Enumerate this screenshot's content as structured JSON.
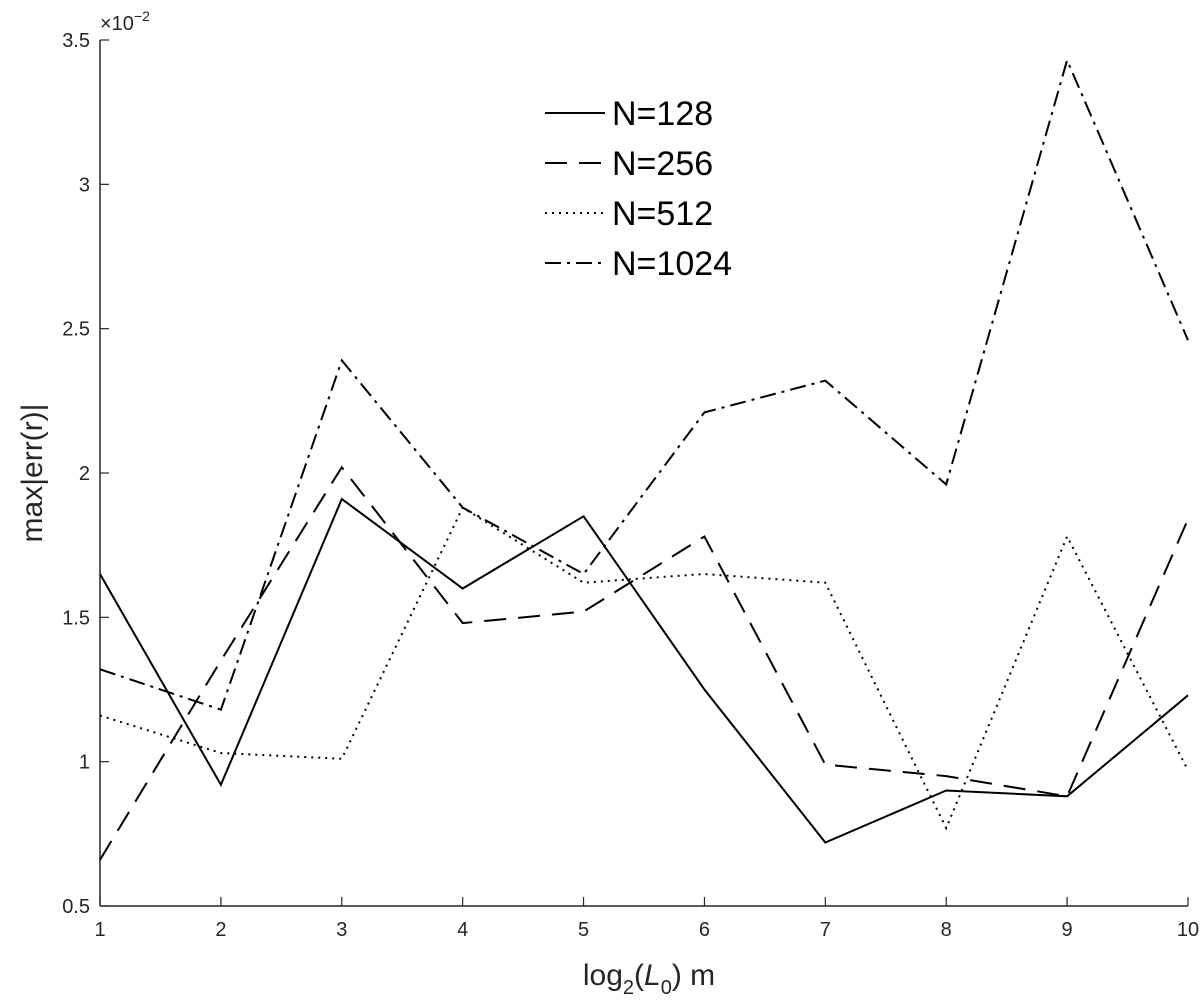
{
  "chart_data": {
    "type": "line",
    "xlabel": {
      "prefix": "log",
      "sub1": "2",
      "mid": "(",
      "italic": "L",
      "sub2": "0",
      "suffix": ") m"
    },
    "ylabel": "max|err(r)|",
    "y_exponent": {
      "base": "×10",
      "power": "−2"
    },
    "x": [
      1,
      2,
      3,
      4,
      5,
      6,
      7,
      8,
      9,
      10
    ],
    "xlim": [
      1,
      10
    ],
    "ylim": [
      0.5,
      3.5
    ],
    "x_ticks": [
      "1",
      "2",
      "3",
      "4",
      "5",
      "6",
      "7",
      "8",
      "9",
      "10"
    ],
    "y_ticks": [
      {
        "value": 0.5,
        "label": "0.5"
      },
      {
        "value": 1.0,
        "label": "1"
      },
      {
        "value": 1.5,
        "label": "1.5"
      },
      {
        "value": 2.0,
        "label": "2"
      },
      {
        "value": 2.5,
        "label": "2.5"
      },
      {
        "value": 3.0,
        "label": "3"
      },
      {
        "value": 3.5,
        "label": "3.5"
      }
    ],
    "grid": false,
    "legend_position": "top-center",
    "series": [
      {
        "name": "N=128",
        "style": "solid",
        "values": [
          1.65,
          0.92,
          1.91,
          1.6,
          1.85,
          1.25,
          0.72,
          0.9,
          0.88,
          1.23
        ]
      },
      {
        "name": "N=256",
        "style": "dashed",
        "values": [
          0.66,
          1.35,
          2.02,
          1.48,
          1.52,
          1.78,
          0.99,
          0.95,
          0.88,
          1.84
        ]
      },
      {
        "name": "N=512",
        "style": "dotted",
        "values": [
          1.16,
          1.03,
          1.01,
          1.88,
          1.62,
          1.65,
          1.62,
          0.77,
          1.78,
          0.97
        ]
      },
      {
        "name": "N=1024",
        "style": "dashdot",
        "values": [
          1.32,
          1.18,
          2.39,
          1.88,
          1.65,
          2.21,
          2.32,
          1.96,
          3.43,
          2.46
        ]
      }
    ],
    "line_color": "#000000",
    "axis_color": "#262626"
  }
}
